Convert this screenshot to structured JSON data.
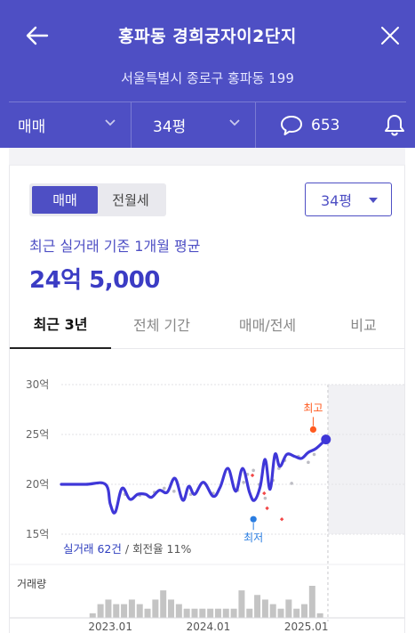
{
  "header": {
    "title": "홍파동 경희궁자이2단지",
    "address": "서울특별시 종로구 홍파동 199",
    "filters": {
      "trade_type": "매매",
      "size": "34평",
      "comment_count": "653"
    }
  },
  "segment": {
    "options": [
      "매매",
      "전월세"
    ],
    "selected": "매매"
  },
  "size_select": {
    "value": "34평"
  },
  "average": {
    "label": "최근 실거래 기준 1개월 평균",
    "value": "24억 5,000"
  },
  "tabs": [
    "최근 3년",
    "전체 기간",
    "매매/전세",
    "비교"
  ],
  "colors": {
    "brand": "#4e4fc4",
    "line": "#3f37d8",
    "max": "#ff5a1f",
    "min": "#2a7de1",
    "volume": "#c4c4c4"
  },
  "chart_data": {
    "type": "line",
    "ylim": [
      15,
      30
    ],
    "y_ticks": [
      "30억",
      "25억",
      "20억",
      "15억"
    ],
    "y_tick_values": [
      30,
      25,
      20,
      15
    ],
    "x_ticks": [
      "2023.01",
      "2024.01",
      "2025.01"
    ],
    "x_tick_values": [
      2023.0,
      2024.0,
      2025.0
    ],
    "xlim": [
      2022.5,
      2026.0
    ],
    "series": [
      {
        "x": [
          2022.5,
          2022.75,
          2022.95,
          2023.0,
          2023.05,
          2023.12,
          2023.2,
          2023.28,
          2023.36,
          2023.42,
          2023.5,
          2023.58,
          2023.66,
          2023.74,
          2023.8,
          2023.86,
          2023.95,
          2024.05,
          2024.12,
          2024.2,
          2024.28,
          2024.35,
          2024.42,
          2024.47,
          2024.53,
          2024.58,
          2024.63,
          2024.68,
          2024.73,
          2024.8,
          2024.88,
          2024.95,
          2025.02,
          2025.1,
          2025.2
        ],
        "values": [
          20.0,
          20.0,
          20.0,
          18.0,
          17.2,
          19.6,
          18.5,
          19.0,
          19.0,
          18.7,
          19.4,
          19.2,
          20.6,
          18.4,
          19.8,
          19.0,
          20.2,
          18.8,
          19.7,
          21.6,
          19.3,
          21.6,
          19.2,
          18.4,
          19.8,
          22.5,
          19.5,
          23.0,
          21.8,
          23.0,
          22.8,
          22.6,
          23.2,
          23.6,
          24.5
        ]
      }
    ],
    "scatter": {
      "x": [
        2023.15,
        2023.3,
        2023.45,
        2023.55,
        2023.65,
        2023.82,
        2024.05,
        2024.3,
        2024.36,
        2024.4,
        2024.46,
        2024.52,
        2024.58,
        2024.66,
        2024.72,
        2024.78,
        2024.85,
        2024.92,
        2025.02,
        2025.08
      ],
      "values": [
        19.0,
        18.9,
        19.2,
        19.6,
        19.3,
        19.0,
        19.1,
        19.4,
        20.2,
        21.0,
        21.4,
        20.0,
        18.6,
        20.4,
        21.6,
        22.4,
        20.1,
        22.8,
        22.2,
        23.0
      ]
    },
    "red_points": {
      "x": [
        2024.45,
        2024.57,
        2024.6,
        2024.75
      ],
      "values": [
        20.9,
        19.1,
        17.6,
        16.5
      ]
    },
    "max": {
      "label": "최고",
      "x": 2025.07,
      "value": 25.5
    },
    "min": {
      "label": "최저",
      "x": 2024.46,
      "value": 16.5
    },
    "current": {
      "x": 2025.2,
      "value": 24.5
    },
    "stats": {
      "deals": "실거래 62건",
      "separator": " / ",
      "turnover": "회전율 11%"
    },
    "volume": {
      "label": "거래량",
      "x": [
        2022.82,
        2022.9,
        2022.98,
        2023.06,
        2023.14,
        2023.22,
        2023.3,
        2023.38,
        2023.46,
        2023.54,
        2023.62,
        2023.7,
        2023.78,
        2023.86,
        2023.94,
        2024.02,
        2024.1,
        2024.18,
        2024.26,
        2024.34,
        2024.42,
        2024.5,
        2024.58,
        2024.66,
        2024.74,
        2024.82,
        2024.9,
        2024.98,
        2025.06,
        2025.14
      ],
      "values": [
        1,
        3,
        4,
        3,
        3,
        4,
        3,
        2,
        4,
        6,
        4,
        3,
        2,
        2,
        2,
        2,
        2,
        2,
        2,
        6,
        2,
        5,
        4,
        3,
        2,
        4,
        2,
        3,
        7,
        1
      ]
    },
    "forecast_region_from": 2025.22,
    "grid": true,
    "legend": "none"
  }
}
